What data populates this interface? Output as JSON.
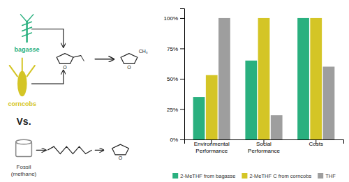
{
  "chart_data": {
    "type": "bar",
    "categories": [
      "Environmental\nPerformance",
      "Social\nPerformance",
      "Costs"
    ],
    "series": [
      {
        "name": "2-MeTHF from bagasse",
        "color": "#2ab07f",
        "values": [
          35,
          65,
          100
        ]
      },
      {
        "name": "2-MeTHF C from corncobs",
        "color": "#d4c526",
        "values": [
          53,
          100,
          100
        ]
      },
      {
        "name": "THF",
        "color": "#9e9e9e",
        "values": [
          100,
          20,
          60
        ]
      }
    ],
    "ylim": [
      0,
      108
    ],
    "yticks": [
      {
        "value": 0,
        "label": "0%"
      },
      {
        "value": 25,
        "label": "25%"
      },
      {
        "value": 50,
        "label": "50%"
      },
      {
        "value": 75,
        "label": "75%"
      },
      {
        "value": 100,
        "label": "100%"
      }
    ],
    "grid": false,
    "legend": "bottom",
    "annotations": [
      "bagasse",
      "corncobs",
      "Vs.",
      "Fossil\n(methane)",
      "O",
      "O",
      "O",
      "CH₃"
    ]
  }
}
